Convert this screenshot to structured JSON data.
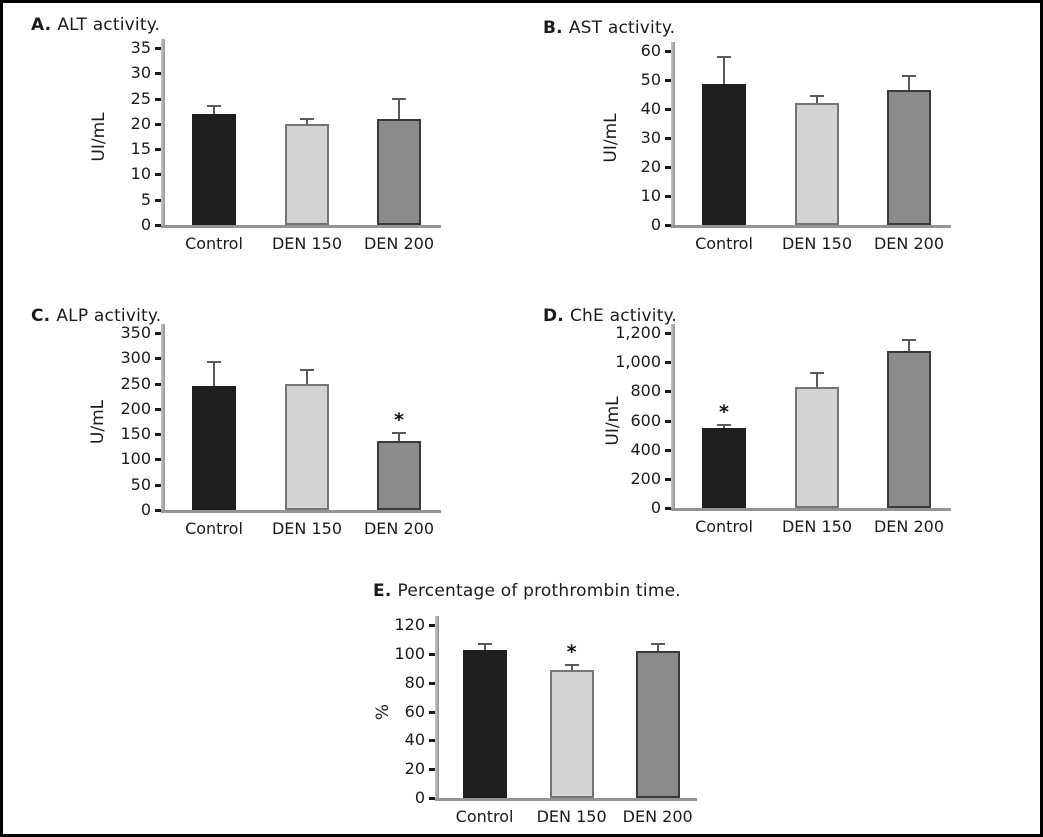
{
  "figure": {
    "categories": [
      "Control",
      "DEN 150",
      "DEN 200"
    ],
    "significance_marker": "*",
    "colors": {
      "frame_border": "#000000",
      "background": "#ffffff",
      "control_fill": "#1e1e1e",
      "control_border": "#1e1e1e",
      "den150_fill": "#d3d3d3",
      "den150_border": "#757575",
      "den200_fill": "#8b8b8b",
      "den200_border": "#3a3a3a",
      "axis_gray": "#999999",
      "error_bar": "#5a5a5a"
    }
  },
  "chart_data": [
    {
      "type": "bar",
      "panel_letter": "A.",
      "title": "ALT activity.",
      "ylabel": "UI/mL",
      "xlabel": "",
      "ylim": [
        0,
        35
      ],
      "yticks": [
        "0",
        "5",
        "10",
        "15",
        "20",
        "25",
        "30",
        "35"
      ],
      "categories": [
        "Control",
        "DEN 150",
        "DEN 200"
      ],
      "values": [
        22,
        20,
        21
      ],
      "errors_plus": [
        1.5,
        1,
        4
      ],
      "significant": [
        false,
        false,
        false
      ],
      "grid": false,
      "legend": "none"
    },
    {
      "type": "bar",
      "panel_letter": "B.",
      "title": "AST activity.",
      "ylabel": "UI/mL",
      "xlabel": "",
      "ylim": [
        0,
        60
      ],
      "yticks": [
        "0",
        "10",
        "20",
        "30",
        "40",
        "50",
        "60"
      ],
      "categories": [
        "Control",
        "DEN 150",
        "DEN 200"
      ],
      "values": [
        48.5,
        42,
        46.5
      ],
      "errors_plus": [
        9.5,
        2.5,
        5
      ],
      "significant": [
        false,
        false,
        false
      ],
      "grid": false,
      "legend": "none"
    },
    {
      "type": "bar",
      "panel_letter": "C.",
      "title": "ALP activity.",
      "ylabel": "U/mL",
      "xlabel": "",
      "ylim": [
        0,
        350
      ],
      "yticks": [
        "0",
        "50",
        "100",
        "150",
        "200",
        "250",
        "300",
        "350"
      ],
      "categories": [
        "Control",
        "DEN 150",
        "DEN 200"
      ],
      "values": [
        245,
        250,
        136
      ],
      "errors_plus": [
        47,
        27,
        16
      ],
      "significant": [
        false,
        false,
        true
      ],
      "grid": false,
      "legend": "none"
    },
    {
      "type": "bar",
      "panel_letter": "D.",
      "title": "ChE activity.",
      "ylabel": "UI/mL",
      "xlabel": "",
      "ylim": [
        0,
        1200
      ],
      "yticks": [
        "0",
        "200",
        "400",
        "600",
        "800",
        "1,000",
        "1,200"
      ],
      "categories": [
        "Control",
        "DEN 150",
        "DEN 200"
      ],
      "values": [
        548,
        830,
        1078
      ],
      "errors_plus": [
        18,
        93,
        77
      ],
      "significant": [
        true,
        false,
        false
      ],
      "grid": false,
      "legend": "none"
    },
    {
      "type": "bar",
      "panel_letter": "E.",
      "title": "Percentage of prothrombin time.",
      "ylabel": "%",
      "xlabel": "",
      "ylim": [
        0,
        120
      ],
      "yticks": [
        "0",
        "20",
        "40",
        "60",
        "80",
        "100",
        "120"
      ],
      "categories": [
        "Control",
        "DEN 150",
        "DEN 200"
      ],
      "values": [
        103,
        88.5,
        102
      ],
      "errors_plus": [
        4,
        4,
        4.5
      ],
      "significant": [
        false,
        true,
        false
      ],
      "grid": false,
      "legend": "none"
    }
  ]
}
